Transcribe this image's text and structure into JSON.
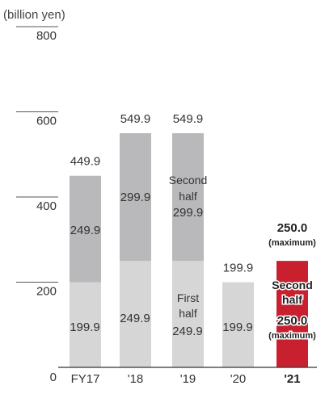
{
  "chart_data": {
    "type": "bar",
    "unit_label": "(billion yen)",
    "categories": [
      "FY17",
      "'18",
      "'19",
      "'20",
      "'21"
    ],
    "y_ticks": [
      0,
      200,
      400,
      600,
      800
    ],
    "ylim": [
      0,
      800
    ],
    "totals": [
      "449.9",
      "549.9",
      "549.9",
      "199.9",
      "250.0"
    ],
    "series": [
      {
        "name": "",
        "values": [
          199.9,
          249.9,
          249.9,
          199.9,
          0
        ]
      },
      {
        "name": "",
        "values": [
          249.9,
          299.9,
          299.9,
          0,
          250.0
        ]
      }
    ],
    "bar_colors": {
      "first_half": "#d6d6d6",
      "second_half": "#b9b9bb",
      "highlight": "#c8202f"
    },
    "segment_labels": {
      "first_half": [
        "199.9",
        "249.9",
        "249.9",
        "199.9",
        ""
      ],
      "second_half": [
        "249.9",
        "299.9",
        "299.9",
        "",
        "250.0"
      ]
    },
    "annotations": {
      "second_half_caption": [
        "Second",
        "half"
      ],
      "first_half_caption": [
        "First",
        "half"
      ],
      "maximum": "(maximum)",
      "highlight_second_half": [
        "Second",
        "half"
      ]
    }
  }
}
